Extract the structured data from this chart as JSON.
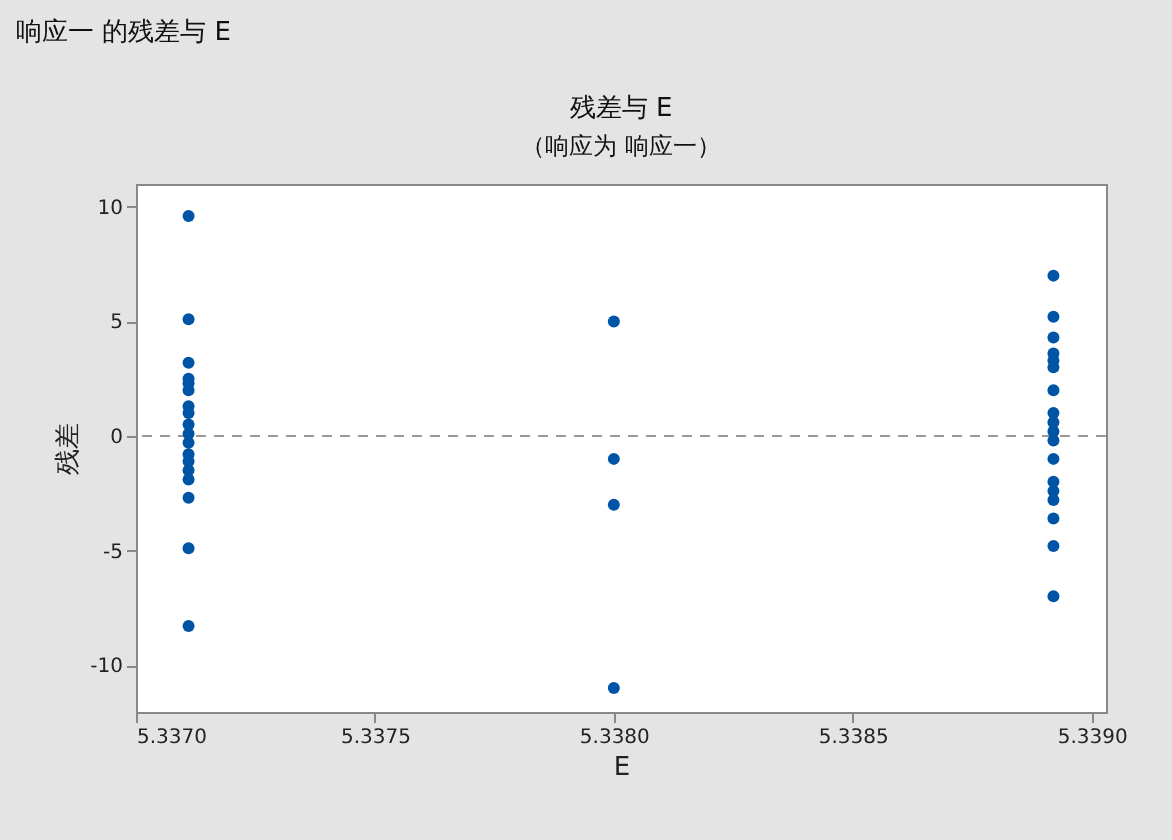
{
  "chart_data": {
    "type": "scatter",
    "title": "残差与 E",
    "subtitle": "（响应为 响应一）",
    "xlabel": "E",
    "ylabel": "残差",
    "annotations": [
      "响应一 的残差与 E"
    ],
    "series": [
      {
        "color": "#0054a6",
        "x": [
          5.33711,
          5.33711,
          5.33711,
          5.33711,
          5.33711,
          5.33711,
          5.33711,
          5.33711,
          5.33711,
          5.33711,
          5.33711,
          5.33711,
          5.33711,
          5.33711,
          5.33711,
          5.33711,
          5.33711,
          5.33711,
          5.338,
          5.338,
          5.338,
          5.338,
          5.33892,
          5.33892,
          5.33892,
          5.33892,
          5.33892,
          5.33892,
          5.33892,
          5.33892,
          5.33892,
          5.33892,
          5.33892,
          5.33892,
          5.33892,
          5.33892,
          5.33892,
          5.33892,
          5.33892,
          5.33892
        ],
        "values": [
          9.6,
          5.1,
          3.2,
          2.5,
          2.3,
          2.0,
          1.3,
          1.0,
          0.5,
          0.1,
          -0.3,
          -0.8,
          -1.1,
          -1.5,
          -1.9,
          -2.7,
          -4.9,
          -8.3,
          5.0,
          -1.0,
          -3.0,
          -11.0,
          7.0,
          5.2,
          4.3,
          3.6,
          3.3,
          3.0,
          2.0,
          1.0,
          0.6,
          0.2,
          -0.2,
          -1.0,
          -2.0,
          -2.4,
          -2.8,
          -3.6,
          -4.8,
          -7.0
        ]
      }
    ],
    "xlim": [
      5.337,
      5.33903
    ],
    "xticks": [
      {
        "value": 5.337,
        "label": "5.3370"
      },
      5.3375,
      {
        "value": 5.338,
        "label": "5.3380"
      },
      5.3385,
      {
        "value": 5.339,
        "label": "5.3390"
      }
    ],
    "ylim": [
      -12.05,
      11.0
    ],
    "yticks": [
      -10,
      -5,
      0,
      5,
      10
    ],
    "ref_lines": [
      {
        "axis": "y",
        "value": 0,
        "color": "#999999",
        "line_style": "dashed"
      }
    ],
    "grid": false
  }
}
